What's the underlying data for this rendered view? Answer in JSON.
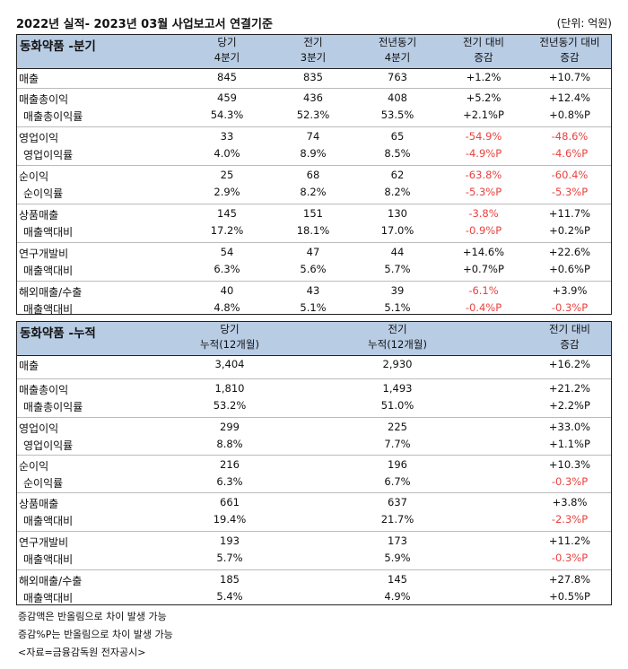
{
  "title": "2022년 실적- 2023년 03월 사업보고서 연결기준",
  "unit": "(단위: 억원)",
  "quarterly": {
    "name": "동화약품 -분기",
    "headers": [
      [
        "당기",
        "4분기"
      ],
      [
        "전기",
        "3분기"
      ],
      [
        "전년동기",
        "4분기"
      ],
      [
        "전기 대비",
        "증감"
      ],
      [
        "전년동기 대비",
        "증감"
      ]
    ],
    "groups": [
      {
        "rows": [
          {
            "label": "매출",
            "values": [
              "845",
              "835",
              "763",
              "+1.2%",
              "+10.7%"
            ]
          }
        ]
      },
      {
        "rows": [
          {
            "label": "매출총이익",
            "values": [
              "459",
              "436",
              "408",
              "+5.2%",
              "+12.4%"
            ]
          },
          {
            "label": "매출총이익률",
            "values": [
              "54.3%",
              "52.3%",
              "53.5%",
              "+2.1%P",
              "+0.8%P"
            ]
          }
        ]
      },
      {
        "rows": [
          {
            "label": "영업이익",
            "values": [
              "33",
              "74",
              "65",
              "-54.9%",
              "-48.6%"
            ]
          },
          {
            "label": "영업이익률",
            "values": [
              "4.0%",
              "8.9%",
              "8.5%",
              "-4.9%P",
              "-4.6%P"
            ]
          }
        ]
      },
      {
        "rows": [
          {
            "label": "순이익",
            "values": [
              "25",
              "68",
              "62",
              "-63.8%",
              "-60.4%"
            ]
          },
          {
            "label": "순이익률",
            "values": [
              "2.9%",
              "8.2%",
              "8.2%",
              "-5.3%P",
              "-5.3%P"
            ]
          }
        ]
      },
      {
        "rows": [
          {
            "label": "상품매출",
            "values": [
              "145",
              "151",
              "130",
              "-3.8%",
              "+11.7%"
            ]
          },
          {
            "label": "매출액대비",
            "values": [
              "17.2%",
              "18.1%",
              "17.0%",
              "-0.9%P",
              "+0.2%P"
            ]
          }
        ]
      },
      {
        "rows": [
          {
            "label": "연구개발비",
            "values": [
              "54",
              "47",
              "44",
              "+14.6%",
              "+22.6%"
            ]
          },
          {
            "label": "매출액대비",
            "values": [
              "6.3%",
              "5.6%",
              "5.7%",
              "+0.7%P",
              "+0.6%P"
            ]
          }
        ]
      },
      {
        "rows": [
          {
            "label": "해외매출/수출",
            "values": [
              "40",
              "43",
              "39",
              "-6.1%",
              "+3.9%"
            ]
          },
          {
            "label": "매출액대비",
            "values": [
              "4.8%",
              "5.1%",
              "5.1%",
              "-0.4%P",
              "-0.3%P"
            ]
          }
        ]
      }
    ]
  },
  "cumulative": {
    "name": "동화약품 -누적",
    "headers": [
      [
        "당기",
        "누적(12개월)"
      ],
      [
        "전기",
        "누적(12개월)"
      ],
      [
        "전기 대비",
        "증감"
      ]
    ],
    "groups": [
      {
        "rows": [
          {
            "label": "매출",
            "values": [
              "3,404",
              "2,930",
              "+16.2%"
            ]
          }
        ]
      },
      {
        "rows": [
          {
            "label": "매출총이익",
            "values": [
              "1,810",
              "1,493",
              "+21.2%"
            ]
          },
          {
            "label": "매출총이익률",
            "values": [
              "53.2%",
              "51.0%",
              "+2.2%P"
            ]
          }
        ]
      },
      {
        "rows": [
          {
            "label": "영업이익",
            "values": [
              "299",
              "225",
              "+33.0%"
            ]
          },
          {
            "label": "영업이익률",
            "values": [
              "8.8%",
              "7.7%",
              "+1.1%P"
            ]
          }
        ]
      },
      {
        "rows": [
          {
            "label": "순이익",
            "values": [
              "216",
              "196",
              "+10.3%"
            ]
          },
          {
            "label": "순이익률",
            "values": [
              "6.3%",
              "6.7%",
              "-0.3%P"
            ]
          }
        ]
      },
      {
        "rows": [
          {
            "label": "상품매출",
            "values": [
              "661",
              "637",
              "+3.8%"
            ]
          },
          {
            "label": "매출액대비",
            "values": [
              "19.4%",
              "21.7%",
              "-2.3%P"
            ]
          }
        ]
      },
      {
        "rows": [
          {
            "label": "연구개발비",
            "values": [
              "193",
              "173",
              "+11.2%"
            ]
          },
          {
            "label": "매출액대비",
            "values": [
              "5.7%",
              "5.9%",
              "-0.3%P"
            ]
          }
        ]
      },
      {
        "rows": [
          {
            "label": "해외매출/수출",
            "values": [
              "185",
              "145",
              "+27.8%"
            ]
          },
          {
            "label": "매출액대비",
            "values": [
              "5.4%",
              "4.9%",
              "+0.5%P"
            ]
          }
        ]
      }
    ]
  },
  "notes": [
    "증감액은 반올림으로 차이 발생 가능",
    "증감%P는 반올림으로 차이 발생 가능",
    "<자료=금융감독원 전자공시>"
  ],
  "colors": {
    "header_bg": "#b8cce4",
    "negative_text": "#e8423f"
  }
}
